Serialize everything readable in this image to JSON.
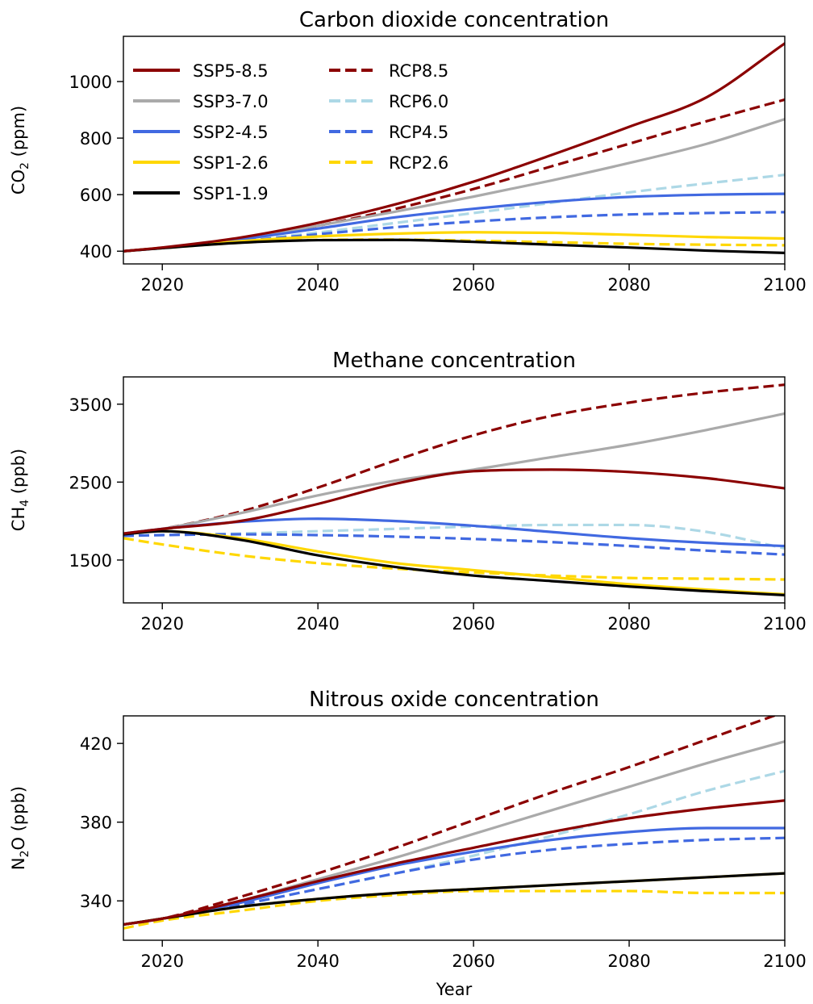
{
  "figure": {
    "xlabel": "Year",
    "legend_position": "upper-left of top panel, two columns"
  },
  "styles": {
    "SSP5-8.5": {
      "color": "#8b0000",
      "dash": "solid"
    },
    "SSP3-7.0": {
      "color": "#aaaaaa",
      "dash": "solid"
    },
    "SSP2-4.5": {
      "color": "#4169e1",
      "dash": "solid"
    },
    "SSP1-2.6": {
      "color": "#ffd700",
      "dash": "solid"
    },
    "SSP1-1.9": {
      "color": "#000000",
      "dash": "solid"
    },
    "RCP8.5": {
      "color": "#8b0000",
      "dash": "dashed"
    },
    "RCP6.0": {
      "color": "#add8e6",
      "dash": "dashed"
    },
    "RCP4.5": {
      "color": "#4169e1",
      "dash": "dashed"
    },
    "RCP2.6": {
      "color": "#ffd700",
      "dash": "dashed"
    }
  },
  "legend": {
    "column_1": [
      "SSP5-8.5",
      "SSP3-7.0",
      "SSP2-4.5",
      "SSP1-2.6",
      "SSP1-1.9"
    ],
    "column_2": [
      "RCP8.5",
      "RCP6.0",
      "RCP4.5",
      "RCP2.6"
    ]
  },
  "chart_data": [
    {
      "type": "line",
      "title": "Carbon dioxide concentration",
      "ylabel": "CO",
      "ylabel_subscript": "2",
      "ylabel_unit": " (ppm)",
      "xlabel": "",
      "xlim": [
        2015,
        2100
      ],
      "ylim": [
        355,
        1160
      ],
      "xticks": [
        2020,
        2040,
        2060,
        2080,
        2100
      ],
      "yticks": [
        400,
        600,
        800,
        1000
      ],
      "grid": false,
      "x": [
        2015,
        2020,
        2030,
        2040,
        2050,
        2060,
        2070,
        2080,
        2090,
        2100
      ],
      "series": [
        {
          "name": "RCP6.0",
          "values": [
            400,
            411,
            436,
            466,
            500,
            535,
            571,
            608,
            640,
            670
          ]
        },
        {
          "name": "RCP4.5",
          "values": [
            400,
            411,
            435,
            460,
            485,
            505,
            520,
            530,
            535,
            538
          ]
        },
        {
          "name": "RCP2.6",
          "values": [
            400,
            411,
            430,
            440,
            441,
            437,
            432,
            426,
            423,
            421
          ]
        },
        {
          "name": "RCP8.5",
          "values": [
            400,
            412,
            443,
            490,
            550,
            620,
            700,
            780,
            860,
            936
          ]
        },
        {
          "name": "SSP3-7.0",
          "values": [
            400,
            412,
            444,
            490,
            540,
            593,
            650,
            712,
            780,
            867
          ]
        },
        {
          "name": "SSP2-4.5",
          "values": [
            400,
            412,
            442,
            480,
            520,
            550,
            575,
            592,
            600,
            603
          ]
        },
        {
          "name": "SSP1-2.6",
          "values": [
            400,
            412,
            435,
            452,
            462,
            467,
            465,
            458,
            450,
            445
          ]
        },
        {
          "name": "SSP1-1.9",
          "values": [
            400,
            411,
            430,
            439,
            440,
            433,
            423,
            413,
            402,
            394
          ]
        },
        {
          "name": "SSP5-8.5",
          "values": [
            400,
            413,
            448,
            500,
            566,
            646,
            740,
            840,
            945,
            1135
          ]
        }
      ]
    },
    {
      "type": "line",
      "title": "Methane concentration",
      "ylabel": "CH",
      "ylabel_subscript": "4",
      "ylabel_unit": " (ppb)",
      "xlabel": "",
      "xlim": [
        2015,
        2100
      ],
      "ylim": [
        950,
        3850
      ],
      "xticks": [
        2020,
        2040,
        2060,
        2080,
        2100
      ],
      "yticks": [
        1500,
        2500,
        3500
      ],
      "grid": false,
      "x": [
        2015,
        2020,
        2030,
        2040,
        2050,
        2060,
        2070,
        2080,
        2090,
        2100
      ],
      "series": [
        {
          "name": "RCP6.0",
          "values": [
            1810,
            1820,
            1840,
            1870,
            1900,
            1930,
            1950,
            1950,
            1860,
            1650
          ]
        },
        {
          "name": "RCP4.5",
          "values": [
            1810,
            1820,
            1830,
            1820,
            1800,
            1770,
            1730,
            1680,
            1620,
            1570
          ]
        },
        {
          "name": "RCP2.6",
          "values": [
            1780,
            1700,
            1560,
            1460,
            1390,
            1340,
            1300,
            1270,
            1260,
            1250
          ]
        },
        {
          "name": "RCP8.5",
          "values": [
            1830,
            1900,
            2120,
            2430,
            2780,
            3100,
            3350,
            3520,
            3650,
            3750
          ]
        },
        {
          "name": "SSP3-7.0",
          "values": [
            1830,
            1900,
            2100,
            2330,
            2520,
            2660,
            2820,
            2980,
            3170,
            3380
          ]
        },
        {
          "name": "SSP2-4.5",
          "values": [
            1840,
            1900,
            1990,
            2030,
            2000,
            1940,
            1860,
            1780,
            1720,
            1680
          ]
        },
        {
          "name": "SSP1-2.6",
          "values": [
            1840,
            1870,
            1780,
            1610,
            1460,
            1370,
            1280,
            1190,
            1120,
            1060
          ]
        },
        {
          "name": "SSP1-1.9",
          "values": [
            1830,
            1870,
            1760,
            1560,
            1410,
            1300,
            1230,
            1160,
            1100,
            1050
          ]
        },
        {
          "name": "SSP5-8.5",
          "values": [
            1840,
            1900,
            2000,
            2220,
            2480,
            2640,
            2660,
            2630,
            2550,
            2420
          ]
        }
      ]
    },
    {
      "type": "line",
      "title": "Nitrous oxide concentration",
      "ylabel": "N",
      "ylabel_subscript": "2",
      "ylabel_unit": "O (ppb)",
      "xlabel": "Year",
      "xlim": [
        2015,
        2100
      ],
      "ylim": [
        320,
        434
      ],
      "xticks": [
        2020,
        2040,
        2060,
        2080,
        2100
      ],
      "yticks": [
        340,
        380,
        420
      ],
      "grid": false,
      "x": [
        2015,
        2020,
        2030,
        2040,
        2050,
        2060,
        2070,
        2080,
        2090,
        2100
      ],
      "series": [
        {
          "name": "RCP6.0",
          "values": [
            328,
            331,
            338,
            346,
            354,
            363,
            373,
            384,
            396,
            406
          ]
        },
        {
          "name": "RCP4.5",
          "values": [
            328,
            331,
            338,
            346,
            354,
            361,
            366,
            369,
            371,
            372
          ]
        },
        {
          "name": "RCP2.6",
          "values": [
            326,
            330,
            335,
            340,
            343,
            345,
            345,
            345,
            344,
            344
          ]
        },
        {
          "name": "RCP8.5",
          "values": [
            328,
            331,
            342,
            354,
            367,
            381,
            395,
            408,
            422,
            436
          ]
        },
        {
          "name": "SSP3-7.0",
          "values": [
            328,
            331,
            340,
            351,
            362,
            374,
            386,
            398,
            410,
            421
          ]
        },
        {
          "name": "SSP2-4.5",
          "values": [
            328,
            331,
            339,
            349,
            358,
            365,
            371,
            375,
            377,
            377
          ]
        },
        {
          "name": "SSP1-2.6",
          "values": [
            328,
            331,
            337,
            341,
            344,
            346,
            348,
            350,
            352,
            354
          ]
        },
        {
          "name": "SSP1-1.9",
          "values": [
            328,
            331,
            337,
            341,
            344,
            346,
            348,
            350,
            352,
            354
          ]
        },
        {
          "name": "SSP5-8.5",
          "values": [
            328,
            331,
            340,
            350,
            359,
            367,
            375,
            382,
            387,
            391
          ]
        }
      ]
    }
  ]
}
